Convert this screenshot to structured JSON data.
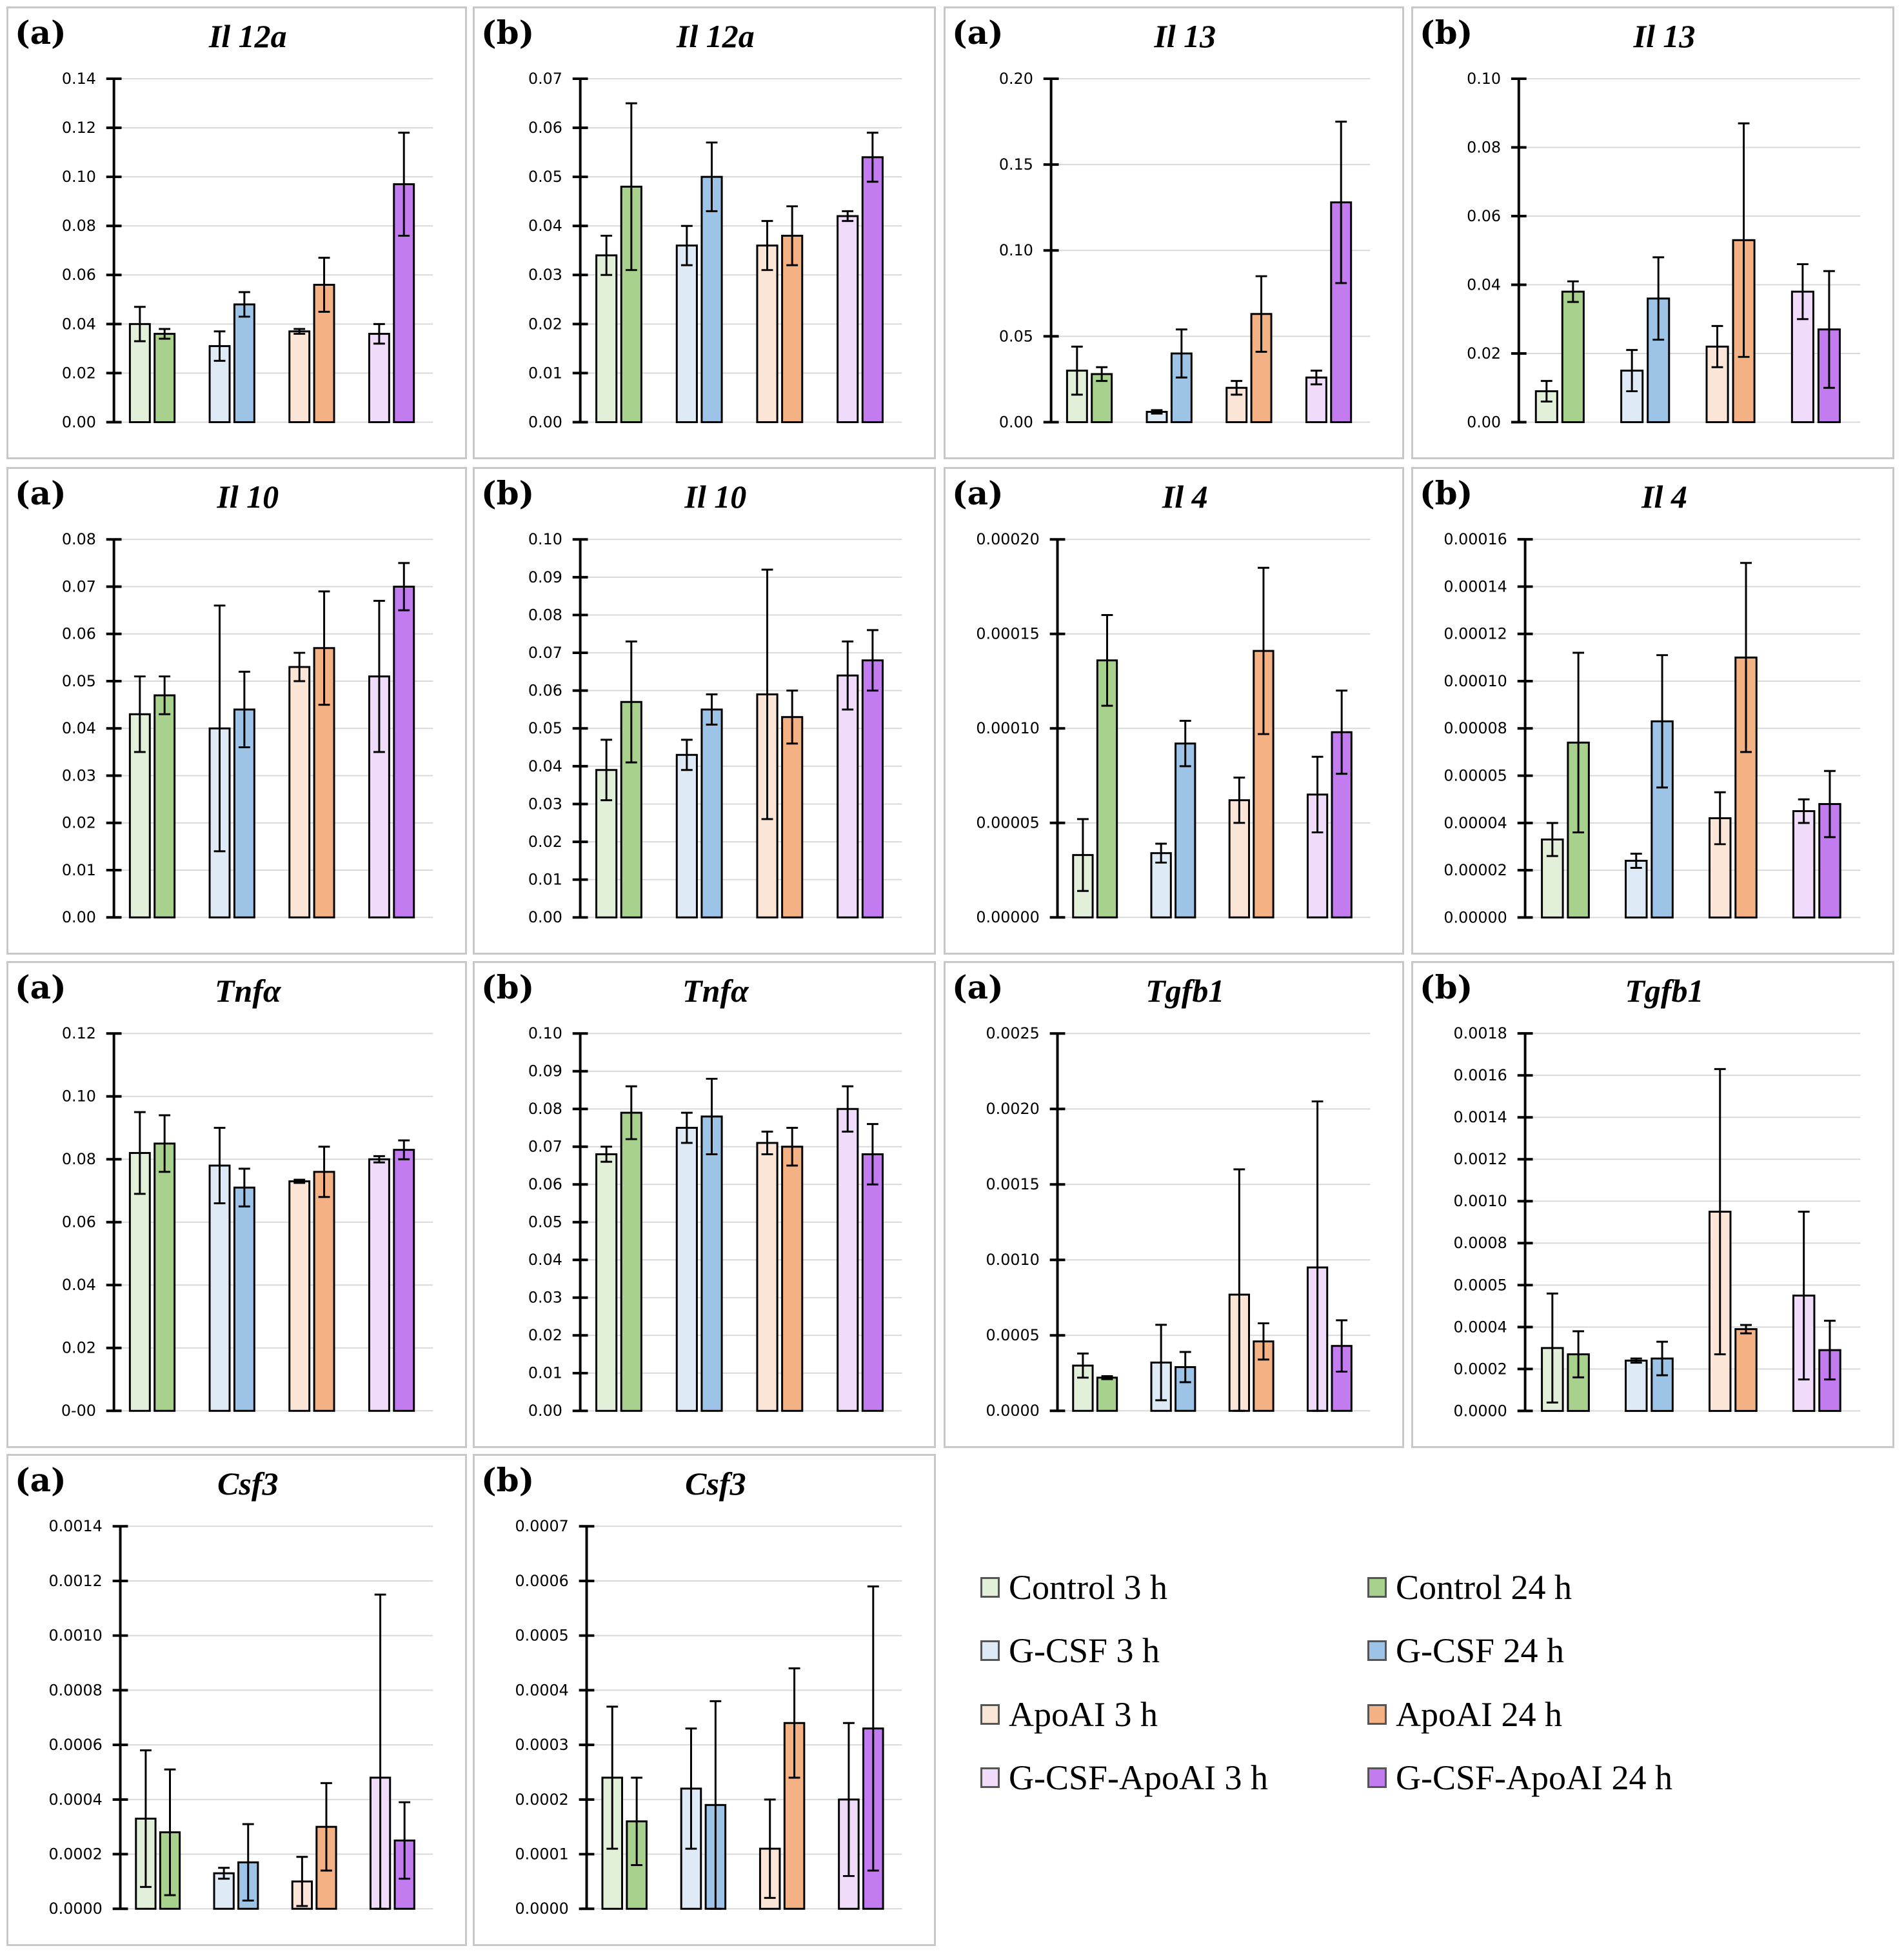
{
  "colors": {
    "C3": "#e2efd9",
    "C24": "#a9d18e",
    "G3": "#deebf7",
    "G24": "#9dc3e6",
    "A3": "#fbe5d6",
    "A24": "#f4b183",
    "GA3": "#f0dcfa",
    "GA24": "#c27cf0"
  },
  "legend": [
    {
      "key": "C3",
      "label": "Control 3 h"
    },
    {
      "key": "C24",
      "label": "Control 24 h"
    },
    {
      "key": "G3",
      "label": "G-CSF 3 h"
    },
    {
      "key": "G24",
      "label": "G-CSF 24 h"
    },
    {
      "key": "A3",
      "label": "ApoAI 3 h"
    },
    {
      "key": "A24",
      "label": "ApoAI 24 h"
    },
    {
      "key": "GA3",
      "label": "G-CSF-ApoAI 3 h"
    },
    {
      "key": "GA24",
      "label": "G-CSF-ApoAI 24 h"
    }
  ],
  "chart_data": {
    "type": "bar",
    "series_order": [
      "C3",
      "C24",
      "G3",
      "G24",
      "A3",
      "A24",
      "GA3",
      "GA24"
    ],
    "panels": [
      {
        "label": "(a)",
        "gene": "Il 12a",
        "ylim": [
          0,
          0.14
        ],
        "yticks": [
          "0.00",
          "0.02",
          "0.04",
          "0.06",
          "0.08",
          "0.10",
          "0.12",
          "0.14"
        ],
        "values": [
          0.04,
          0.036,
          0.031,
          0.048,
          0.037,
          0.056,
          0.036,
          0.097
        ],
        "errors": [
          0.007,
          0.002,
          0.006,
          0.005,
          0.001,
          0.011,
          0.004,
          0.021
        ]
      },
      {
        "label": "(b)",
        "gene": "Il 12a",
        "ylim": [
          0,
          0.07
        ],
        "yticks": [
          "0.00",
          "0.01",
          "0.02",
          "0.03",
          "0.04",
          "0.05",
          "0.06",
          "0.07"
        ],
        "values": [
          0.034,
          0.048,
          0.036,
          0.05,
          0.036,
          0.038,
          0.042,
          0.054
        ],
        "errors": [
          0.004,
          0.017,
          0.004,
          0.007,
          0.005,
          0.006,
          0.001,
          0.005
        ]
      },
      {
        "label": "(a)",
        "gene": "Il 13",
        "ylim": [
          0,
          0.2
        ],
        "yticks": [
          "0.00",
          "0.05",
          "0.10",
          "0.15",
          "0.20"
        ],
        "values": [
          0.03,
          0.028,
          0.006,
          0.04,
          0.02,
          0.063,
          0.026,
          0.128
        ],
        "errors": [
          0.014,
          0.004,
          0.001,
          0.014,
          0.004,
          0.022,
          0.004,
          0.047
        ]
      },
      {
        "label": "(b)",
        "gene": "Il 13",
        "ylim": [
          0,
          0.1
        ],
        "yticks": [
          "0.00",
          "0.02",
          "0.04",
          "0.06",
          "0.08",
          "0.10"
        ],
        "values": [
          0.009,
          0.038,
          0.015,
          0.036,
          0.022,
          0.053,
          0.038,
          0.027
        ],
        "errors": [
          0.003,
          0.003,
          0.006,
          0.012,
          0.006,
          0.034,
          0.008,
          0.017
        ]
      },
      {
        "label": "(a)",
        "gene": "Il 10",
        "ylim": [
          0,
          0.08
        ],
        "yticks": [
          "0.00",
          "0.01",
          "0.02",
          "0.03",
          "0.04",
          "0.05",
          "0.06",
          "0.07",
          "0.08"
        ],
        "values": [
          0.043,
          0.047,
          0.04,
          0.044,
          0.053,
          0.057,
          0.051,
          0.07
        ],
        "errors": [
          0.008,
          0.004,
          0.026,
          0.008,
          0.003,
          0.012,
          0.016,
          0.005
        ]
      },
      {
        "label": "(b)",
        "gene": "Il 10",
        "ylim": [
          0,
          0.1
        ],
        "yticks": [
          "0.00",
          "0.01",
          "0.02",
          "0.03",
          "0.04",
          "0.05",
          "0.06",
          "0.07",
          "0.08",
          "0.09",
          "0.10"
        ],
        "values": [
          0.039,
          0.057,
          0.043,
          0.055,
          0.059,
          0.053,
          0.064,
          0.068
        ],
        "errors": [
          0.008,
          0.016,
          0.004,
          0.004,
          0.033,
          0.007,
          0.009,
          0.008
        ]
      },
      {
        "label": "(a)",
        "gene": "Il 4",
        "ylim": [
          0,
          0.0002
        ],
        "yticks": [
          "0.00000",
          "0.00005",
          "0.00010",
          "0.00015",
          "0.00020"
        ],
        "values": [
          3.3e-05,
          0.000136,
          3.4e-05,
          9.2e-05,
          6.2e-05,
          0.000141,
          6.5e-05,
          9.8e-05
        ],
        "errors": [
          1.9e-05,
          2.4e-05,
          5e-06,
          1.2e-05,
          1.2e-05,
          4.4e-05,
          2e-05,
          2.2e-05
        ]
      },
      {
        "label": "(b)",
        "gene": "Il 4",
        "ylim": [
          0,
          0.00016
        ],
        "yticks": [
          "0.00000",
          "0.00002",
          "0.00004",
          "0.00005",
          "0.00008",
          "0.00010",
          "0.00012",
          "0.00014",
          "0.00016"
        ],
        "values": [
          3.3e-05,
          7.4e-05,
          2.4e-05,
          8.3e-05,
          4.2e-05,
          0.00011,
          4.5e-05,
          4.8e-05
        ],
        "errors": [
          7e-06,
          3.8e-05,
          3e-06,
          2.8e-05,
          1.1e-05,
          4e-05,
          5e-06,
          1.4e-05
        ]
      },
      {
        "label": "(a)",
        "gene": "Tnfα",
        "ylim": [
          0,
          0.12
        ],
        "yticks": [
          "0-00",
          "0.02",
          "0.04",
          "0.06",
          "0.08",
          "0.10",
          "0.12"
        ],
        "values": [
          0.082,
          0.085,
          0.078,
          0.071,
          0.073,
          0.076,
          0.08,
          0.083
        ],
        "errors": [
          0.013,
          0.009,
          0.012,
          0.006,
          0.0005,
          0.008,
          0.001,
          0.003
        ]
      },
      {
        "label": "(b)",
        "gene": "Tnfα",
        "ylim": [
          0,
          0.1
        ],
        "yticks": [
          "0.00",
          "0.01",
          "0.02",
          "0.03",
          "0.04",
          "0.05",
          "0.06",
          "0.07",
          "0.08",
          "0.09",
          "0.10"
        ],
        "values": [
          0.068,
          0.079,
          0.075,
          0.078,
          0.071,
          0.07,
          0.08,
          0.068
        ],
        "errors": [
          0.002,
          0.007,
          0.004,
          0.01,
          0.003,
          0.005,
          0.006,
          0.008
        ]
      },
      {
        "label": "(a)",
        "gene": "Tgfb1",
        "ylim": [
          0,
          0.0025
        ],
        "yticks": [
          "0.0000",
          "0.0005",
          "0.0010",
          "0.0015",
          "0.0020",
          "0.0025"
        ],
        "values": [
          0.0003,
          0.00022,
          0.00032,
          0.00029,
          0.00077,
          0.00046,
          0.00095,
          0.00043
        ],
        "errors": [
          8e-05,
          1e-05,
          0.00025,
          0.0001,
          0.00083,
          0.00012,
          0.0011,
          0.00017
        ]
      },
      {
        "label": "(b)",
        "gene": "Tgfb1",
        "ylim": [
          0,
          0.0018
        ],
        "yticks": [
          "0.0000",
          "0.0002",
          "0.0004",
          "0.0005",
          "0.0008",
          "0.0010",
          "0.0012",
          "0.0014",
          "0.0016",
          "0.0018"
        ],
        "values": [
          0.0003,
          0.00027,
          0.00024,
          0.00025,
          0.00095,
          0.00039,
          0.00055,
          0.00029
        ],
        "errors": [
          0.00026,
          0.00011,
          1e-05,
          8e-05,
          0.00068,
          2e-05,
          0.0004,
          0.00014
        ]
      },
      {
        "label": "(a)",
        "gene": "Csf3",
        "ylim": [
          0,
          0.0014
        ],
        "yticks": [
          "0.0000",
          "0.0002",
          "0.0004",
          "0.0006",
          "0.0008",
          "0.0010",
          "0.0012",
          "0.0014"
        ],
        "values": [
          0.00033,
          0.00028,
          0.00013,
          0.00017,
          0.0001,
          0.0003,
          0.00048,
          0.00025
        ],
        "errors": [
          0.00025,
          0.00023,
          2e-05,
          0.00014,
          9e-05,
          0.00016,
          0.00067,
          0.00014
        ]
      },
      {
        "label": "(b)",
        "gene": "Csf3",
        "ylim": [
          0,
          0.0007
        ],
        "yticks": [
          "0.0000",
          "0.0001",
          "0.0002",
          "0.0003",
          "0.0004",
          "0.0005",
          "0.0006",
          "0.0007"
        ],
        "values": [
          0.00024,
          0.00016,
          0.00022,
          0.00019,
          0.00011,
          0.00034,
          0.0002,
          0.00033
        ],
        "errors": [
          0.00013,
          8e-05,
          0.00011,
          0.00019,
          9e-05,
          0.0001,
          0.00014,
          0.00026
        ]
      }
    ]
  }
}
